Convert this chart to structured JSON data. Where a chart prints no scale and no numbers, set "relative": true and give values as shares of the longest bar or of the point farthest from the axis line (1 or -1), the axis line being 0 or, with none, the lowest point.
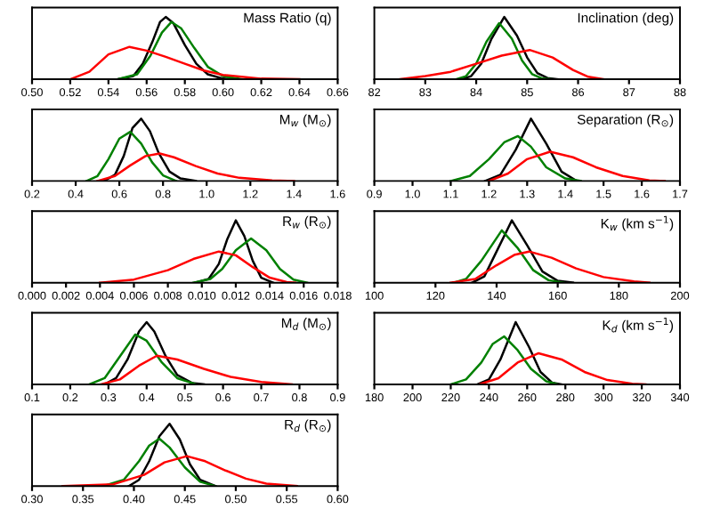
{
  "chart_data": [
    {
      "type": "line",
      "title": "Mass Ratio (q)",
      "relative": true,
      "tick_labels": "x",
      "xlim": [
        0.5,
        0.66
      ],
      "xticks": [
        {
          "value": 0.5,
          "label": "0.50"
        },
        0.52,
        0.54,
        0.56,
        0.58,
        {
          "value": 0.6,
          "label": "0.60"
        },
        0.62,
        0.64,
        0.66
      ],
      "series": [
        {
          "color": "#000000",
          "x": [
            0.545,
            0.553,
            0.558,
            0.563,
            0.567,
            0.57,
            0.574,
            0.58,
            0.586,
            0.592,
            0.6,
            0.606
          ],
          "values": [
            0,
            0.05,
            0.25,
            0.6,
            0.92,
            1,
            0.9,
            0.55,
            0.25,
            0.08,
            0.01,
            0
          ]
        },
        {
          "color": "#008000",
          "x": [
            0.545,
            0.555,
            0.562,
            0.568,
            0.573,
            0.578,
            0.585,
            0.592,
            0.6,
            0.61
          ],
          "values": [
            0,
            0.08,
            0.38,
            0.75,
            0.92,
            0.82,
            0.5,
            0.2,
            0.05,
            0
          ]
        },
        {
          "color": "#ff0000",
          "x": [
            0.52,
            0.53,
            0.54,
            0.551,
            0.56,
            0.57,
            0.58,
            0.59,
            0.6,
            0.62,
            0.64
          ],
          "values": [
            0,
            0.12,
            0.4,
            0.52,
            0.46,
            0.36,
            0.25,
            0.14,
            0.07,
            0.01,
            0
          ]
        }
      ]
    },
    {
      "type": "line",
      "title": "Inclination (deg)",
      "relative": true,
      "tick_labels": "x",
      "xlim": [
        82,
        88
      ],
      "xticks": [
        82,
        83,
        84,
        85,
        86,
        87,
        88
      ],
      "series": [
        {
          "color": "#000000",
          "x": [
            83.7,
            83.9,
            84.1,
            84.3,
            84.55,
            84.8,
            85.0,
            85.2,
            85.4,
            85.6
          ],
          "values": [
            0,
            0.05,
            0.25,
            0.65,
            1,
            0.7,
            0.35,
            0.1,
            0.02,
            0
          ]
        },
        {
          "color": "#008000",
          "x": [
            83.6,
            83.8,
            84.0,
            84.2,
            84.45,
            84.7,
            84.9,
            85.1,
            85.3,
            85.5
          ],
          "values": [
            0,
            0.05,
            0.25,
            0.6,
            0.9,
            0.65,
            0.3,
            0.08,
            0.01,
            0
          ]
        },
        {
          "color": "#ff0000",
          "x": [
            82.5,
            83.0,
            83.5,
            84.0,
            84.5,
            85.05,
            85.5,
            85.9,
            86.2,
            86.5
          ],
          "values": [
            0,
            0.05,
            0.12,
            0.25,
            0.38,
            0.47,
            0.35,
            0.15,
            0.04,
            0
          ]
        }
      ]
    },
    {
      "type": "line",
      "title": "M$_{w}$ (M$_{⊙}$)",
      "relative": true,
      "tick_labels": "x",
      "xlim": [
        0.2,
        1.6
      ],
      "xticks": [
        0.2,
        0.4,
        0.6,
        0.8,
        {
          "value": 1.0,
          "label": "1.0"
        },
        1.2,
        1.4,
        1.6
      ],
      "series": [
        {
          "color": "#000000",
          "x": [
            0.53,
            0.58,
            0.62,
            0.66,
            0.7,
            0.74,
            0.78,
            0.83,
            0.88,
            0.95
          ],
          "values": [
            0,
            0.1,
            0.4,
            0.85,
            1,
            0.8,
            0.45,
            0.15,
            0.04,
            0
          ]
        },
        {
          "color": "#008000",
          "x": [
            0.45,
            0.5,
            0.55,
            0.6,
            0.65,
            0.7,
            0.75,
            0.8,
            0.86
          ],
          "values": [
            0,
            0.08,
            0.35,
            0.68,
            0.79,
            0.6,
            0.3,
            0.09,
            0
          ]
        },
        {
          "color": "#ff0000",
          "x": [
            0.5,
            0.58,
            0.65,
            0.72,
            0.785,
            0.85,
            0.95,
            1.05,
            1.15,
            1.3,
            1.4
          ],
          "values": [
            0,
            0.08,
            0.25,
            0.4,
            0.44,
            0.38,
            0.24,
            0.12,
            0.05,
            0.01,
            0
          ]
        }
      ]
    },
    {
      "type": "line",
      "title": "Separation (R$_{⊙}$)",
      "relative": true,
      "tick_labels": "x",
      "xlim": [
        0.9,
        1.7
      ],
      "xticks": [
        0.9,
        {
          "value": 1.0,
          "label": "1.0"
        },
        1.1,
        1.2,
        1.3,
        1.4,
        1.5,
        1.6,
        1.7
      ],
      "series": [
        {
          "color": "#000000",
          "x": [
            1.19,
            1.23,
            1.27,
            1.31,
            1.35,
            1.39,
            1.43
          ],
          "values": [
            0,
            0.1,
            0.5,
            1,
            0.6,
            0.15,
            0
          ]
        },
        {
          "color": "#008000",
          "x": [
            1.1,
            1.15,
            1.2,
            1.24,
            1.276,
            1.31,
            1.35,
            1.4,
            1.44
          ],
          "values": [
            0,
            0.08,
            0.35,
            0.62,
            0.72,
            0.55,
            0.22,
            0.04,
            0
          ]
        },
        {
          "color": "#ff0000",
          "x": [
            1.2,
            1.25,
            1.3,
            1.36,
            1.42,
            1.48,
            1.55,
            1.62,
            1.66
          ],
          "values": [
            0,
            0.12,
            0.35,
            0.47,
            0.38,
            0.22,
            0.08,
            0.01,
            0
          ]
        }
      ]
    },
    {
      "type": "line",
      "title": "R$_{w}$ (R$_{⊙}$)",
      "relative": true,
      "tick_labels": "x",
      "xlim": [
        0,
        0.018
      ],
      "xticks": [
        {
          "value": 0,
          "label": "0.000"
        },
        0.002,
        0.004,
        0.006,
        0.008,
        {
          "value": 0.01,
          "label": "0.010"
        },
        0.012,
        0.014,
        0.016,
        0.018
      ],
      "series": [
        {
          "color": "#000000",
          "x": [
            0.0096,
            0.0104,
            0.011,
            0.0115,
            0.012,
            0.0125,
            0.013,
            0.0135,
            0.0142
          ],
          "values": [
            0,
            0.06,
            0.3,
            0.7,
            1,
            0.75,
            0.35,
            0.08,
            0
          ]
        },
        {
          "color": "#008000",
          "x": [
            0.0095,
            0.0105,
            0.0112,
            0.012,
            0.0129,
            0.0138,
            0.0146,
            0.0154,
            0.0162
          ],
          "values": [
            0,
            0.06,
            0.22,
            0.52,
            0.71,
            0.52,
            0.22,
            0.05,
            0
          ]
        },
        {
          "color": "#ff0000",
          "x": [
            0.004,
            0.006,
            0.008,
            0.0095,
            0.011,
            0.012,
            0.013,
            0.014,
            0.015,
            0.0155
          ],
          "values": [
            0,
            0.05,
            0.2,
            0.38,
            0.5,
            0.44,
            0.25,
            0.08,
            0.01,
            0
          ]
        }
      ]
    },
    {
      "type": "line",
      "title": "K$_{w}$ (km s$^{−1}$)",
      "relative": true,
      "tick_labels": "x",
      "xlim": [
        100,
        200
      ],
      "xticks": [
        100,
        120,
        140,
        160,
        180,
        200
      ],
      "series": [
        {
          "color": "#000000",
          "x": [
            132,
            136,
            140,
            145,
            150,
            155,
            160,
            165
          ],
          "values": [
            0,
            0.1,
            0.5,
            1,
            0.6,
            0.18,
            0.03,
            0
          ]
        },
        {
          "color": "#008000",
          "x": [
            126,
            130,
            135,
            141.7,
            147,
            152,
            157,
            162
          ],
          "values": [
            0,
            0.06,
            0.35,
            0.84,
            0.55,
            0.2,
            0.04,
            0
          ]
        },
        {
          "color": "#ff0000",
          "x": [
            125,
            133,
            140,
            146,
            150.6,
            158,
            166,
            175,
            185,
            190
          ],
          "values": [
            0,
            0.06,
            0.28,
            0.45,
            0.5,
            0.4,
            0.23,
            0.09,
            0.02,
            0
          ]
        }
      ]
    },
    {
      "type": "line",
      "title": "M$_{d}$ (M$_{⊙}$)",
      "relative": true,
      "tick_labels": "x",
      "xlim": [
        0.1,
        0.9
      ],
      "xticks": [
        0.1,
        0.2,
        0.3,
        0.4,
        0.5,
        0.6,
        0.7,
        0.8,
        0.9
      ],
      "series": [
        {
          "color": "#000000",
          "x": [
            0.29,
            0.32,
            0.35,
            0.38,
            0.4,
            0.42,
            0.45,
            0.48,
            0.52,
            0.55
          ],
          "values": [
            0,
            0.1,
            0.4,
            0.85,
            1,
            0.85,
            0.45,
            0.15,
            0.02,
            0
          ]
        },
        {
          "color": "#008000",
          "x": [
            0.25,
            0.29,
            0.33,
            0.37,
            0.4,
            0.44,
            0.48,
            0.53
          ],
          "values": [
            0,
            0.1,
            0.45,
            0.8,
            0.7,
            0.35,
            0.1,
            0
          ]
        },
        {
          "color": "#ff0000",
          "x": [
            0.28,
            0.33,
            0.38,
            0.427,
            0.48,
            0.55,
            0.62,
            0.7,
            0.78
          ],
          "values": [
            0,
            0.08,
            0.3,
            0.46,
            0.4,
            0.25,
            0.12,
            0.04,
            0
          ]
        }
      ]
    },
    {
      "type": "line",
      "title": "K$_{d}$ (km s$^{−1}$)",
      "relative": true,
      "tick_labels": "x",
      "xlim": [
        180,
        340
      ],
      "xticks": [
        180,
        200,
        220,
        240,
        260,
        280,
        300,
        320,
        340
      ],
      "series": [
        {
          "color": "#000000",
          "x": [
            234,
            240,
            246,
            254,
            261,
            267,
            273,
            278
          ],
          "values": [
            0,
            0.08,
            0.4,
            1,
            0.6,
            0.2,
            0.03,
            0
          ]
        },
        {
          "color": "#008000",
          "x": [
            220,
            228,
            236,
            242,
            248,
            255,
            262,
            270,
            276
          ],
          "values": [
            0,
            0.08,
            0.35,
            0.65,
            0.77,
            0.55,
            0.25,
            0.05,
            0
          ]
        },
        {
          "color": "#ff0000",
          "x": [
            235,
            245,
            255,
            266,
            278,
            290,
            302,
            315,
            322
          ],
          "values": [
            0,
            0.1,
            0.35,
            0.5,
            0.4,
            0.2,
            0.07,
            0.01,
            0
          ]
        }
      ]
    },
    {
      "type": "line",
      "title": "R$_{d}$ (R$_{⊙}$)",
      "relative": true,
      "tick_labels": "x",
      "xlim": [
        0.3,
        0.6
      ],
      "xticks": [
        {
          "value": 0.3,
          "label": "0.30"
        },
        0.35,
        {
          "value": 0.4,
          "label": "0.40"
        },
        0.45,
        {
          "value": 0.5,
          "label": "0.50"
        },
        0.55,
        {
          "value": 0.6,
          "label": "0.60"
        }
      ],
      "series": [
        {
          "color": "#000000",
          "x": [
            0.395,
            0.405,
            0.415,
            0.425,
            0.435,
            0.445,
            0.455,
            0.465,
            0.48
          ],
          "values": [
            0,
            0.1,
            0.4,
            0.8,
            1,
            0.75,
            0.35,
            0.1,
            0
          ]
        },
        {
          "color": "#008000",
          "x": [
            0.37,
            0.39,
            0.405,
            0.415,
            0.425,
            0.435,
            0.45,
            0.465,
            0.48
          ],
          "values": [
            0,
            0.1,
            0.4,
            0.65,
            0.76,
            0.62,
            0.3,
            0.07,
            0
          ]
        },
        {
          "color": "#ff0000",
          "x": [
            0.33,
            0.38,
            0.41,
            0.43,
            0.452,
            0.47,
            0.49,
            0.51,
            0.53,
            0.56
          ],
          "values": [
            0,
            0.03,
            0.18,
            0.38,
            0.48,
            0.4,
            0.25,
            0.12,
            0.04,
            0
          ]
        }
      ]
    }
  ]
}
